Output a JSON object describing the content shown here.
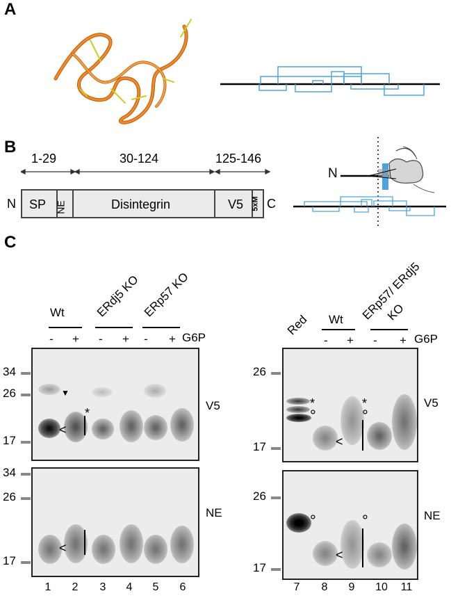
{
  "panel_labels": {
    "a": "A",
    "b": "B",
    "c": "C"
  },
  "panel_b": {
    "ranges": [
      "1-29",
      "30-124",
      "125-146"
    ],
    "n_terminus": "N",
    "c_terminus": "C",
    "domains": [
      "SP",
      "NE",
      "Disintegrin",
      "V5",
      "5xM"
    ],
    "schematic_n": "N"
  },
  "panel_c": {
    "left": {
      "groups": [
        "Wt",
        "ERdj5 KO",
        "ERp57 KO"
      ],
      "g6p_label": "G6P",
      "signs": [
        "-",
        "+",
        "-",
        "+",
        "-",
        "+"
      ],
      "mw_top": [
        "34",
        "26",
        "17"
      ],
      "mw_bottom": [
        "34",
        "26",
        "17"
      ],
      "blot_top_label": "V5",
      "blot_bottom_label": "NE",
      "lanes": [
        "1",
        "2",
        "3",
        "4",
        "5",
        "6"
      ]
    },
    "right": {
      "red_label": "Red",
      "groups": [
        "Wt",
        "ERp57/ ERdj5",
        "KO"
      ],
      "g6p_label": "G6P",
      "signs": [
        "-",
        "+",
        "-",
        "+"
      ],
      "mw_top": [
        "26",
        "17"
      ],
      "mw_bottom": [
        "26",
        "17"
      ],
      "blot_top_label": "V5",
      "blot_bottom_label": "NE",
      "lanes": [
        "7",
        "8",
        "9",
        "10",
        "11"
      ]
    },
    "markers": {
      "lt": "<",
      "star": "*",
      "circle": "°",
      "triangle": "▼"
    }
  }
}
